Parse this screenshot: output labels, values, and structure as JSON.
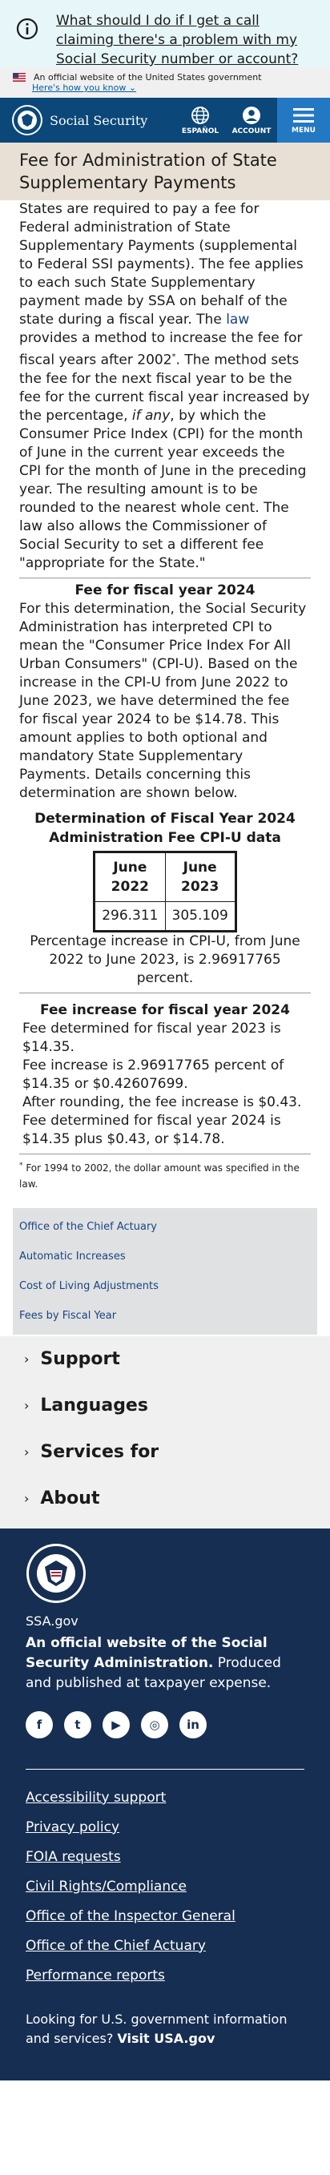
{
  "alert": {
    "link": "What should I do if I get a call claiming there's a problem with my Social Security number or account?"
  },
  "usa_banner": {
    "text": "An official website of the United States government",
    "how": "Here's how you know"
  },
  "header": {
    "site": "Social Security",
    "espanol": "ESPAÑOL",
    "account": "ACCOUNT",
    "menu": "MENU"
  },
  "page": {
    "title": "Fee for Administration of State Supplementary Payments"
  },
  "intro": {
    "p1a": "States are required to pay a fee for Federal administration of State Supplementary Payments (supplemental to Federal SSI payments). The fee applies to each such State Supplementary payment made by SSA on behalf of the state during a fiscal year. The ",
    "law": "law",
    "p1b": " provides a method to increase the fee for fiscal years after 2002",
    "star": "*",
    "p1c": ". The method sets the fee for the next fiscal year to be the fee for the current fiscal year increased by the percentage, ",
    "ifany": "if any",
    "p1d": ", by which the Consumer Price Index (CPI) for the month of June in the current year exceeds the CPI for the month of June in the preceding year. The resulting amount is to be rounded to the nearest whole cent. The law also allows the Commissioner of Social Security to set a different fee \"appropriate for the State.\""
  },
  "fy": {
    "heading": "Fee for fiscal year 2024",
    "text": "For this determination, the Social Security Administration has interpreted CPI to mean the \"Consumer Price Index For All Urban Consumers\" (CPI-U). Based on the increase in the CPI-U from June 2022 to June 2023, we have determined the fee for fiscal year 2024 to be $14.78. This amount applies to both optional and mandatory State Supplementary Payments. Details concerning this determination are shown below."
  },
  "table": {
    "caption": "Determination of Fiscal Year 2024 Administration Fee CPI-U data",
    "headers": [
      "June 2022",
      "June 2023"
    ],
    "values": [
      "296.311",
      "305.109"
    ]
  },
  "pct": "Percentage increase in CPI-U, from June 2022 to June 2023, is 2.96917765 percent.",
  "increase": {
    "heading": "Fee increase for fiscal year 2024",
    "lines": [
      "Fee determined for fiscal year 2023 is $14.35.",
      "Fee increase is 2.96917765 percent of $14.35 or $0.42607699.",
      "After rounding, the fee increase is $0.43.",
      "Fee determined for fiscal year 2024 is $14.35 plus $0.43, or $14.78."
    ]
  },
  "footnote": {
    "star": "*",
    "text": " For 1994 to 2002, the dollar amount was specified in the law."
  },
  "related": [
    "Office of the Chief Actuary",
    "Automatic Increases",
    "Cost of Living Adjustments",
    "Fees by Fiscal Year"
  ],
  "accordion": [
    "Support",
    "Languages",
    "Services for",
    "About"
  ],
  "footer": {
    "site": "SSA.gov",
    "official_bold": "An official website of the Social Security Administration.",
    "official_rest": " Produced and published at taxpayer expense.",
    "social": [
      "facebook-icon",
      "twitter-icon",
      "youtube-icon",
      "instagram-icon",
      "linkedin-icon"
    ],
    "links": [
      "Accessibility support",
      "Privacy policy",
      "FOIA requests",
      "Civil Rights/Compliance",
      "Office of the Inspector General",
      "Office of the Chief Actuary",
      "Performance reports"
    ],
    "usagov_text": "Looking for U.S. government information and services? ",
    "usagov_link": "Visit USA.gov"
  }
}
